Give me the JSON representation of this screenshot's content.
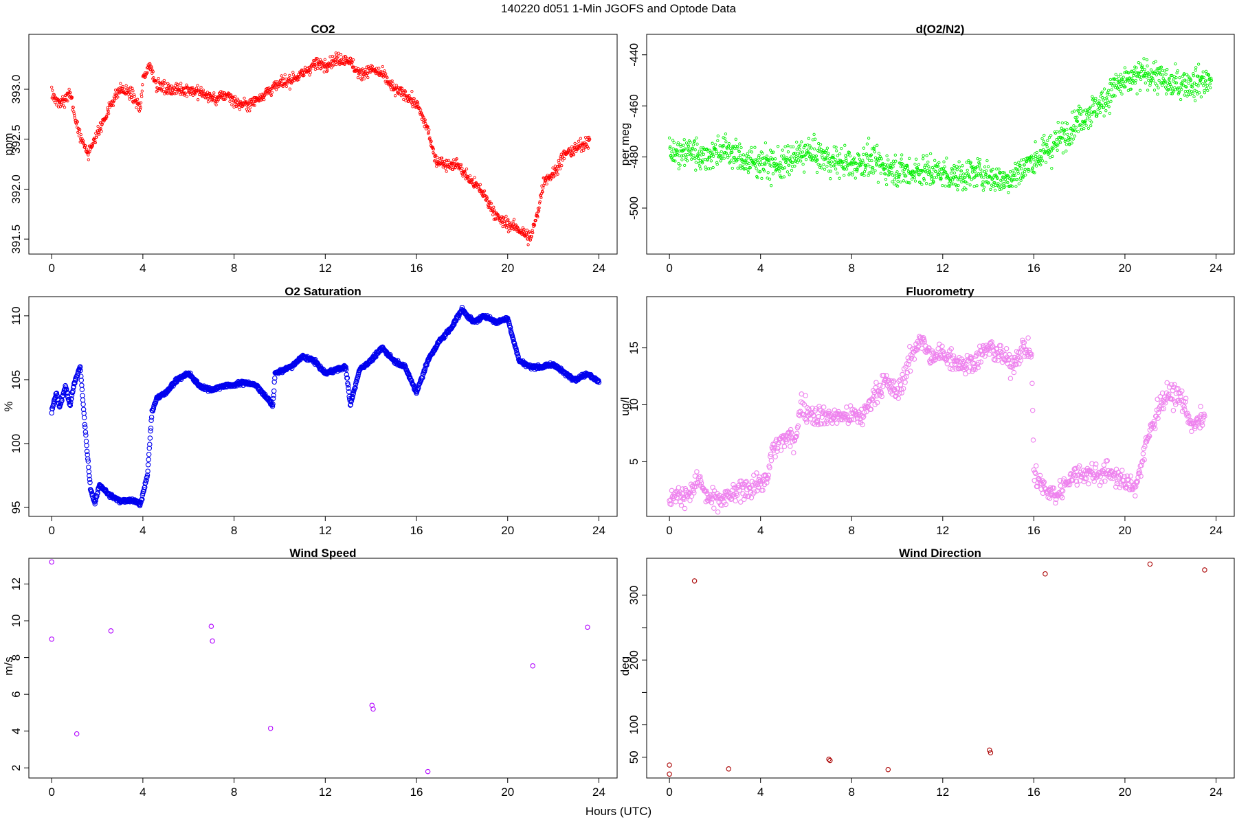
{
  "figure": {
    "title": "140220   d051   1-Min  JGOFS and Optode Data",
    "xlabel": "Hours (UTC)"
  },
  "chart_data": [
    {
      "id": "co2",
      "type": "scatter",
      "title": "CO2",
      "ylabel": "ppm",
      "color": "#ff0000",
      "marker_size": "small",
      "xlim": [
        -1,
        24.8
      ],
      "ylim": [
        391.35,
        393.55
      ],
      "xticks": [
        0,
        4,
        8,
        12,
        16,
        20,
        24
      ],
      "yticks": [
        391.5,
        392.0,
        392.5,
        393.0
      ],
      "ytick_labels": [
        "391.5",
        "392.0",
        "392.5",
        "393.0"
      ],
      "series": [
        {
          "points_per_hour": 60,
          "noise": 0.05,
          "x": [
            0.0,
            0.3,
            0.8,
            1.0,
            1.3,
            1.6,
            2.0,
            2.4,
            2.7,
            3.0,
            3.5,
            3.9,
            4.0,
            4.3,
            4.6,
            5.1,
            5.6,
            6.0,
            6.7,
            7.2,
            7.7,
            8.2,
            8.7,
            9.6,
            10.0,
            10.5,
            11.0,
            11.5,
            12.0,
            12.5,
            13.0,
            13.5,
            14.0,
            14.5,
            15.0,
            15.5,
            16.0,
            16.5,
            16.8,
            17.3,
            17.8,
            18.3,
            18.8,
            19.6,
            20.0,
            20.5,
            21.0,
            21.3,
            21.6,
            22.0,
            22.5,
            23.0,
            23.6
          ],
          "y": [
            392.95,
            392.85,
            392.95,
            392.75,
            392.5,
            392.35,
            392.55,
            392.75,
            392.9,
            393.0,
            392.95,
            392.8,
            393.1,
            393.25,
            393.05,
            393.0,
            393.0,
            393.0,
            392.95,
            392.9,
            392.95,
            392.85,
            392.85,
            393.0,
            393.05,
            393.1,
            393.15,
            393.25,
            393.25,
            393.3,
            393.3,
            393.15,
            393.2,
            393.15,
            393.0,
            392.95,
            392.85,
            392.6,
            392.3,
            392.25,
            392.25,
            392.1,
            392.0,
            391.7,
            391.65,
            391.6,
            391.5,
            391.75,
            392.1,
            392.15,
            392.35,
            392.4,
            392.5
          ]
        }
      ]
    },
    {
      "id": "do2n2",
      "type": "scatter",
      "title": "d(O2/N2)",
      "ylabel": "per meg",
      "color": "#00ee00",
      "marker_size": "small",
      "xlim": [
        -1,
        24.8
      ],
      "ylim": [
        -518,
        -432
      ],
      "xticks": [
        0,
        4,
        8,
        12,
        16,
        20,
        24
      ],
      "yticks": [
        -500,
        -480,
        -460,
        -440
      ],
      "ytick_labels": [
        "-500",
        "-480",
        "-460",
        "-440"
      ],
      "series": [
        {
          "points_per_hour": 60,
          "noise": 5,
          "x": [
            0.0,
            0.5,
            1.0,
            1.5,
            2.0,
            2.5,
            3.0,
            3.5,
            4.1,
            4.5,
            5.0,
            6.0,
            7.0,
            7.5,
            8.0,
            8.7,
            9.5,
            10.0,
            10.5,
            11.0,
            11.5,
            12.0,
            12.5,
            13.0,
            13.6,
            14.2,
            14.7,
            15.2,
            15.7,
            16.5,
            17.0,
            17.5,
            18.0,
            18.5,
            19.0,
            19.6,
            20.0,
            20.5,
            21.0,
            21.5,
            22.0,
            22.5,
            23.0,
            23.8
          ],
          "y": [
            -478,
            -479,
            -477,
            -480,
            -478,
            -477,
            -480,
            -482,
            -482,
            -483,
            -483,
            -478,
            -481,
            -482,
            -483,
            -481,
            -484,
            -485,
            -486,
            -485,
            -486,
            -486,
            -488,
            -487,
            -486,
            -488,
            -489,
            -487,
            -483,
            -478,
            -474,
            -470,
            -465,
            -462,
            -459,
            -452,
            -451,
            -449,
            -447,
            -449,
            -452,
            -451,
            -451,
            -450
          ]
        }
      ]
    },
    {
      "id": "o2sat",
      "type": "scatter",
      "title": "O2 Saturation",
      "ylabel": "%",
      "color": "#0000ee",
      "marker_size": "large",
      "xlim": [
        -1,
        24.8
      ],
      "ylim": [
        94.3,
        111.5
      ],
      "xticks": [
        0,
        4,
        8,
        12,
        16,
        20,
        24
      ],
      "yticks": [
        95,
        100,
        105,
        110
      ],
      "ytick_labels": [
        "95",
        "100",
        "105",
        "110"
      ],
      "series": [
        {
          "points_per_hour": 60,
          "noise": 0.12,
          "x": [
            0.0,
            0.2,
            0.35,
            0.6,
            0.8,
            1.0,
            1.25,
            1.5,
            1.7,
            1.9,
            2.1,
            2.5,
            3.0,
            3.5,
            3.9,
            4.2,
            4.4,
            4.6,
            5.0,
            5.5,
            6.0,
            6.5,
            7.0,
            7.5,
            8.0,
            8.5,
            9.0,
            9.7,
            9.8,
            10.5,
            11.0,
            11.5,
            12.0,
            12.5,
            12.9,
            13.1,
            13.5,
            14.0,
            14.5,
            15.0,
            15.5,
            16.0,
            16.5,
            17.0,
            17.5,
            18.0,
            18.5,
            19.0,
            19.5,
            20.0,
            20.5,
            21.0,
            21.5,
            22.0,
            22.5,
            23.0,
            23.5,
            24.0
          ],
          "y": [
            102.5,
            104.0,
            102.8,
            104.5,
            103.0,
            104.8,
            106.0,
            100.5,
            96.5,
            95.3,
            96.8,
            96.0,
            95.5,
            95.6,
            95.3,
            97.5,
            102.5,
            103.5,
            104.0,
            105.0,
            105.5,
            104.5,
            104.2,
            104.5,
            104.6,
            104.8,
            104.5,
            103.0,
            105.5,
            106.0,
            106.8,
            106.5,
            105.5,
            105.8,
            106.0,
            103.0,
            105.8,
            106.5,
            107.5,
            106.5,
            106.0,
            104.0,
            106.5,
            108.0,
            109.0,
            110.5,
            109.5,
            110.0,
            109.5,
            109.8,
            106.5,
            106.0,
            106.0,
            106.2,
            105.5,
            105.0,
            105.5,
            104.8
          ]
        }
      ]
    },
    {
      "id": "fluor",
      "type": "scatter",
      "title": "Fluorometry",
      "ylabel": "ug/l",
      "color": "#ee82ee",
      "marker_size": "large",
      "xlim": [
        -1,
        24.8
      ],
      "ylim": [
        0.2,
        19.5
      ],
      "xticks": [
        0,
        4,
        8,
        12,
        16,
        20,
        24
      ],
      "yticks": [
        5,
        10,
        15
      ],
      "ytick_labels": [
        "5",
        "10",
        "15"
      ],
      "series": [
        {
          "points_per_hour": 40,
          "noise": 0.8,
          "x": [
            0.0,
            0.5,
            1.0,
            1.3,
            1.6,
            2.0,
            2.5,
            3.0,
            3.5,
            4.0,
            4.3,
            4.5,
            5.0,
            5.5,
            5.8,
            6.0,
            6.5,
            7.0,
            7.5,
            8.0,
            8.5,
            9.0,
            9.5,
            10.0,
            10.5,
            11.0,
            11.5,
            12.0,
            12.5,
            13.0,
            13.5,
            14.0,
            14.5,
            15.0,
            15.5,
            15.9,
            16.0,
            16.5,
            17.0,
            17.5,
            18.0,
            18.5,
            19.0,
            19.5,
            20.0,
            20.5,
            21.0,
            21.5,
            22.0,
            22.5,
            23.0,
            23.5
          ],
          "y": [
            2.0,
            2.0,
            2.5,
            3.5,
            2.0,
            1.5,
            1.8,
            2.3,
            2.8,
            3.2,
            3.2,
            6.0,
            7.0,
            7.0,
            10.0,
            9.5,
            9.0,
            9.0,
            9.0,
            9.0,
            9.0,
            11.0,
            12.0,
            11.0,
            13.5,
            16.0,
            14.0,
            14.5,
            14.0,
            13.5,
            14.0,
            15.0,
            14.5,
            13.5,
            15.0,
            14.5,
            4.0,
            2.5,
            2.0,
            3.5,
            4.0,
            4.0,
            4.0,
            4.0,
            3.0,
            3.0,
            7.0,
            10.0,
            11.0,
            10.5,
            8.0,
            9.0
          ]
        }
      ]
    },
    {
      "id": "wspd",
      "type": "scatter",
      "title": "Wind Speed",
      "ylabel": "m/s",
      "color": "#b000ff",
      "marker_size": "large",
      "xlim": [
        -1,
        24.8
      ],
      "ylim": [
        1.45,
        13.4
      ],
      "xticks": [
        0,
        4,
        8,
        12,
        16,
        20,
        24
      ],
      "yticks": [
        2,
        4,
        6,
        8,
        10,
        12
      ],
      "ytick_labels": [
        "2",
        "4",
        "6",
        "8",
        "10",
        "12"
      ],
      "series": [
        {
          "x": [
            0.0,
            0.0,
            1.1,
            2.6,
            7.0,
            7.05,
            9.6,
            14.05,
            14.1,
            16.5,
            21.1,
            23.5
          ],
          "y": [
            13.2,
            9.0,
            3.85,
            9.45,
            9.7,
            8.9,
            4.15,
            5.4,
            5.2,
            1.8,
            7.55,
            9.65
          ]
        }
      ]
    },
    {
      "id": "wdir",
      "type": "scatter",
      "title": "Wind Direction",
      "ylabel": "deg",
      "color": "#aa0000",
      "marker_size": "large",
      "xlim": [
        -1,
        24.8
      ],
      "ylim": [
        18,
        357
      ],
      "xticks": [
        0,
        4,
        8,
        12,
        16,
        20,
        24
      ],
      "yticks": [
        50,
        100,
        200,
        300
      ],
      "ytick_labels": [
        "50",
        "100",
        "200",
        "300"
      ],
      "extra_ticks": [
        150,
        250
      ],
      "series": [
        {
          "x": [
            0.0,
            0.0,
            1.1,
            2.6,
            7.0,
            7.05,
            9.6,
            14.05,
            14.1,
            16.5,
            21.1,
            23.5
          ],
          "y": [
            38,
            24,
            322,
            32,
            47,
            45,
            31,
            61,
            57,
            333,
            348,
            339
          ]
        }
      ]
    }
  ]
}
